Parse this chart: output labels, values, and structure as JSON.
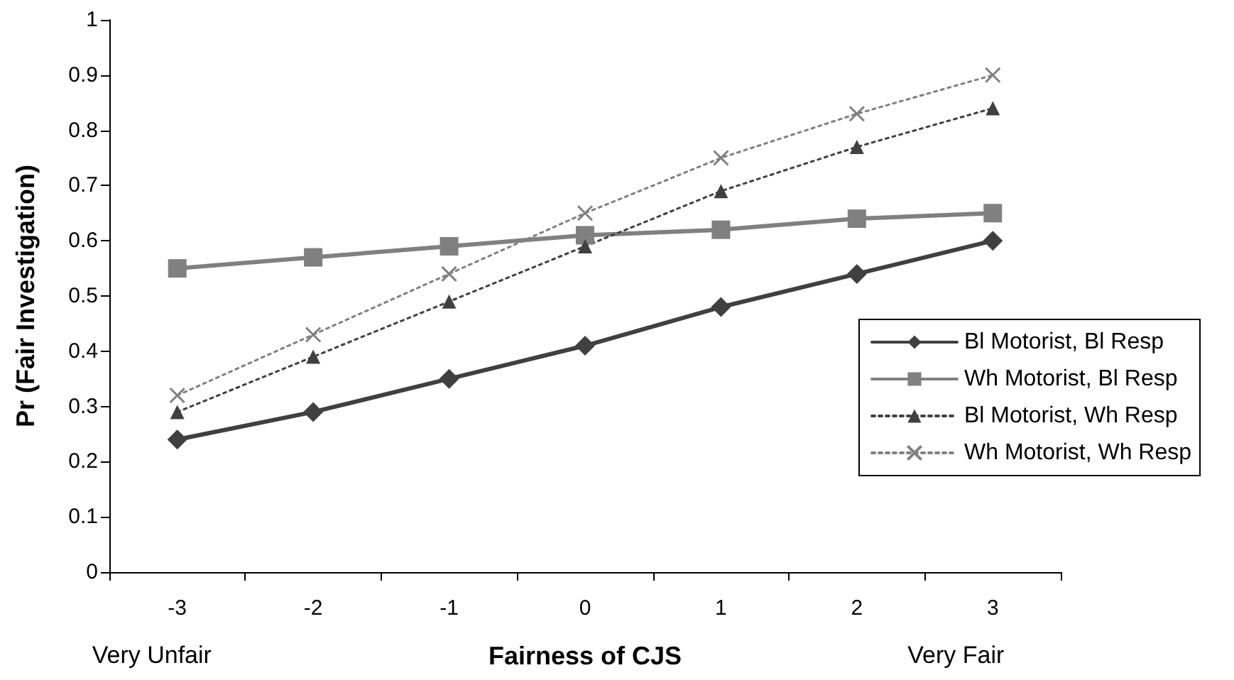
{
  "chart_data": {
    "type": "line",
    "xlabel": "Fairness of CJS",
    "ylabel": "Pr (Fair Investigation)",
    "categories": [
      "-3",
      "-2",
      "-1",
      "0",
      "1",
      "2",
      "3"
    ],
    "series": [
      {
        "name": "Bl Motorist, Bl Resp",
        "color": "#404040",
        "marker": "diamond",
        "line_style": "solid",
        "values": [
          0.24,
          0.29,
          0.35,
          0.41,
          0.48,
          0.54,
          0.6
        ]
      },
      {
        "name": "Wh Motorist, Bl Resp",
        "color": "#808080",
        "marker": "square",
        "line_style": "solid",
        "values": [
          0.55,
          0.57,
          0.59,
          0.61,
          0.62,
          0.64,
          0.65
        ]
      },
      {
        "name": "Bl Motorist, Wh Resp",
        "color": "#404040",
        "marker": "triangle",
        "line_style": "dotted",
        "values": [
          0.29,
          0.39,
          0.49,
          0.59,
          0.69,
          0.77,
          0.84
        ]
      },
      {
        "name": "Wh Motorist, Wh Resp",
        "color": "#808080",
        "marker": "cross",
        "line_style": "dotted",
        "values": [
          0.32,
          0.43,
          0.54,
          0.65,
          0.75,
          0.83,
          0.9
        ]
      }
    ],
    "ylim": [
      0,
      1
    ],
    "yticks": [
      0,
      0.1,
      0.2,
      0.3,
      0.4,
      0.5,
      0.6,
      0.7,
      0.8,
      0.9,
      1
    ],
    "grid": false,
    "legend": "right",
    "annotations": [
      "Very Unfair",
      "Very Fair"
    ]
  }
}
